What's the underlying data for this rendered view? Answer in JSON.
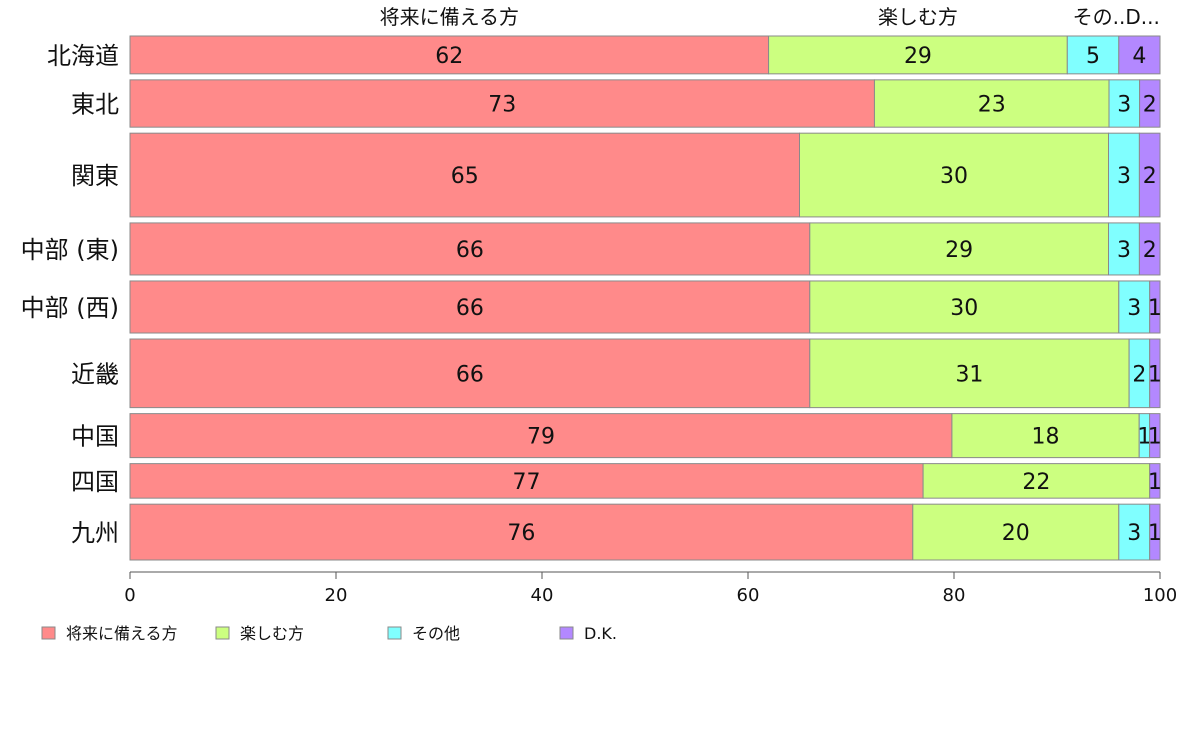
{
  "chart_data": {
    "type": "bar",
    "orientation": "horizontal",
    "stacked": true,
    "categories": [
      "北海道",
      "東北",
      "関東",
      "中部 (東)",
      "中部 (西)",
      "近畿",
      "中国",
      "四国",
      "九州"
    ],
    "relative_widths": [
      0.8,
      1.0,
      1.77,
      1.1,
      1.1,
      1.45,
      0.93,
      0.73,
      1.18
    ],
    "series": [
      {
        "name": "将来に備える方",
        "color": "#ff8a8a",
        "values": [
          62,
          73,
          65,
          66,
          66,
          66,
          79,
          77,
          76
        ]
      },
      {
        "name": "楽しむ方",
        "color": "#ccff80",
        "values": [
          29,
          23,
          30,
          29,
          30,
          31,
          18,
          22,
          20
        ]
      },
      {
        "name": "その他",
        "color": "#80ffff",
        "values": [
          5,
          3,
          3,
          3,
          3,
          2,
          1,
          0,
          3
        ]
      },
      {
        "name": "D.K.",
        "color": "#b388ff",
        "values": [
          4,
          2,
          2,
          2,
          1,
          1,
          1,
          1,
          1
        ]
      }
    ],
    "value_labels": [
      [
        "62",
        "29",
        "5",
        "4"
      ],
      [
        "73",
        "23",
        "3",
        "2"
      ],
      [
        "65",
        "30",
        "3",
        "2"
      ],
      [
        "66",
        "29",
        "3",
        "2"
      ],
      [
        "66",
        "30",
        "3",
        "1"
      ],
      [
        "66",
        "31",
        "2",
        "1"
      ],
      [
        "79",
        "18",
        "1",
        "1"
      ],
      [
        "77",
        "22",
        "",
        "1"
      ],
      [
        "76",
        "20",
        "3",
        "1"
      ]
    ],
    "top_labels": [
      "将来に備える方",
      "楽しむ方",
      "その..D..."
    ],
    "xlim": [
      0,
      100
    ],
    "xticks": [
      "0",
      "20",
      "40",
      "60",
      "80",
      "100"
    ],
    "legend": {
      "position": "bottom-left",
      "items": [
        "将来に備える方",
        "楽しむ方",
        "その他",
        "D.K."
      ]
    }
  }
}
